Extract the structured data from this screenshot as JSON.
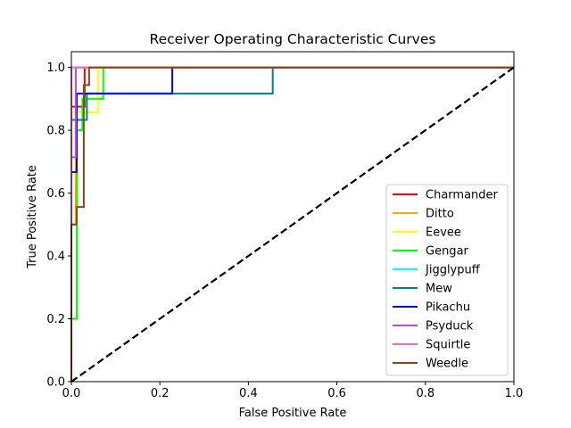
{
  "chart_data": {
    "type": "line",
    "title": "Receiver Operating Characteristic Curves",
    "xlabel": "False Positive Rate",
    "ylabel": "True Positive Rate",
    "xlim": [
      0,
      1
    ],
    "ylim": [
      0,
      1.05
    ],
    "x_ticks": [
      "0.0",
      "0.2",
      "0.4",
      "0.6",
      "0.8",
      "1.0"
    ],
    "y_ticks": [
      "0.0",
      "0.2",
      "0.4",
      "0.6",
      "0.8",
      "1.0"
    ],
    "grid": false,
    "legend_position": "lower right",
    "series": [
      {
        "name": "Charmander",
        "color": "#ff0000",
        "points": [
          [
            0,
            0
          ],
          [
            0,
            0.875
          ],
          [
            0.03,
            0.875
          ],
          [
            0.03,
            1.0
          ],
          [
            1,
            1
          ]
        ]
      },
      {
        "name": "Ditto",
        "color": "#ffa500",
        "points": [
          [
            0,
            0
          ],
          [
            0,
            0.5
          ],
          [
            0.01,
            0.5
          ],
          [
            0.01,
            1.0
          ],
          [
            1,
            1
          ]
        ]
      },
      {
        "name": "Eevee",
        "color": "#ffff00",
        "points": [
          [
            0,
            0
          ],
          [
            0,
            0.857
          ],
          [
            0.06,
            0.857
          ],
          [
            0.06,
            1.0
          ],
          [
            1,
            1
          ]
        ]
      },
      {
        "name": "Gengar",
        "color": "#00ff00",
        "points": [
          [
            0,
            0
          ],
          [
            0,
            0.2
          ],
          [
            0.012,
            0.2
          ],
          [
            0.012,
            0.8
          ],
          [
            0.025,
            0.8
          ],
          [
            0.025,
            0.9
          ],
          [
            0.072,
            0.9
          ],
          [
            0.072,
            1.0
          ],
          [
            1,
            1
          ]
        ]
      },
      {
        "name": "Jigglypuff",
        "color": "#00ffff",
        "points": [
          [
            0,
            0
          ],
          [
            0,
            1.0
          ],
          [
            1,
            1
          ]
        ]
      },
      {
        "name": "Mew",
        "color": "#008080",
        "points": [
          [
            0,
            0
          ],
          [
            0,
            0.833
          ],
          [
            0.035,
            0.833
          ],
          [
            0.035,
            0.917
          ],
          [
            0.455,
            0.917
          ],
          [
            0.455,
            1.0
          ],
          [
            1,
            1
          ]
        ]
      },
      {
        "name": "Pikachu",
        "color": "#0000ff",
        "points": [
          [
            0,
            0
          ],
          [
            0,
            0.667
          ],
          [
            0.012,
            0.667
          ],
          [
            0.012,
            0.917
          ],
          [
            0.228,
            0.917
          ],
          [
            0.228,
            1.0
          ],
          [
            1,
            1
          ]
        ]
      },
      {
        "name": "Psyduck",
        "color": "#b452cd",
        "points": [
          [
            0,
            0
          ],
          [
            0,
            0.714
          ],
          [
            0.01,
            0.714
          ],
          [
            0.01,
            1.0
          ],
          [
            1,
            1
          ]
        ]
      },
      {
        "name": "Squirtle",
        "color": "#ff69b4",
        "points": [
          [
            0,
            0
          ],
          [
            0,
            1.0
          ],
          [
            1,
            1
          ]
        ]
      },
      {
        "name": "Weedle",
        "color": "#8b4513",
        "points": [
          [
            0,
            0
          ],
          [
            0,
            0.5
          ],
          [
            0.012,
            0.5
          ],
          [
            0.012,
            0.556
          ],
          [
            0.028,
            0.556
          ],
          [
            0.028,
            0.944
          ],
          [
            0.04,
            0.944
          ],
          [
            0.04,
            1.0
          ],
          [
            1,
            1
          ]
        ]
      }
    ],
    "reference_line": {
      "color": "#000000",
      "points": [
        [
          0,
          0
        ],
        [
          1,
          1
        ]
      ]
    }
  }
}
